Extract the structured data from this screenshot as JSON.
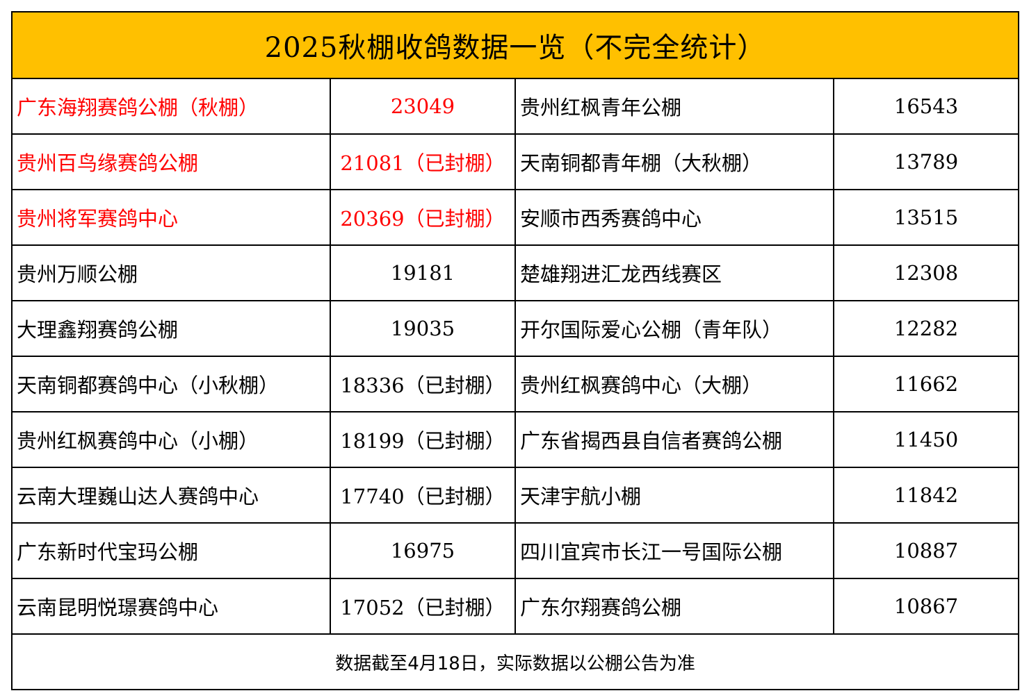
{
  "title": "2025秋棚收鸽数据一览（不完全统计）",
  "highlight_color": "#FF0000",
  "header_color": "#FFC000",
  "rows": [
    {
      "left_name": "广东海翔赛鸽公棚（秋棚）",
      "left_count": "23049",
      "right_name": "贵州红枫青年公棚",
      "right_count": "16543",
      "highlight": true
    },
    {
      "left_name": "贵州百鸟缘赛鸽公棚",
      "left_count": "21081（已封棚）",
      "right_name": "天南铜都青年棚（大秋棚）",
      "right_count": "13789",
      "highlight": true
    },
    {
      "left_name": "贵州将军赛鸽中心",
      "left_count": "20369（已封棚）",
      "right_name": "安顺市西秀赛鸽中心",
      "right_count": "13515",
      "highlight": true
    },
    {
      "left_name": "贵州万顺公棚",
      "left_count": "19181",
      "right_name": "楚雄翔进汇龙西线赛区",
      "right_count": "12308",
      "highlight": false
    },
    {
      "left_name": "大理鑫翔赛鸽公棚",
      "left_count": "19035",
      "right_name": "开尔国际爱心公棚（青年队）",
      "right_count": "12282",
      "highlight": false
    },
    {
      "left_name": "天南铜都赛鸽中心（小秋棚）",
      "left_count": "18336（已封棚）",
      "right_name": "贵州红枫赛鸽中心（大棚）",
      "right_count": "11662",
      "highlight": false
    },
    {
      "left_name": "贵州红枫赛鸽中心（小棚）",
      "left_count": "18199（已封棚）",
      "right_name": "广东省揭西县自信者赛鸽公棚",
      "right_count": "11450",
      "highlight": false
    },
    {
      "left_name": "云南大理巍山达人赛鸽中心",
      "left_count": "17740（已封棚）",
      "right_name": "天津宇航小棚",
      "right_count": "11842",
      "highlight": false
    },
    {
      "left_name": "广东新时代宝玛公棚",
      "left_count": "16975",
      "right_name": "四川宜宾市长江一号国际公棚",
      "right_count": "10887",
      "highlight": false
    },
    {
      "left_name": "云南昆明悦璟赛鸽中心",
      "left_count": "17052（已封棚）",
      "right_name": "广东尔翔赛鸽公棚",
      "right_count": "10867",
      "highlight": false
    }
  ],
  "footer": "数据截至4月18日，实际数据以公棚公告为准"
}
